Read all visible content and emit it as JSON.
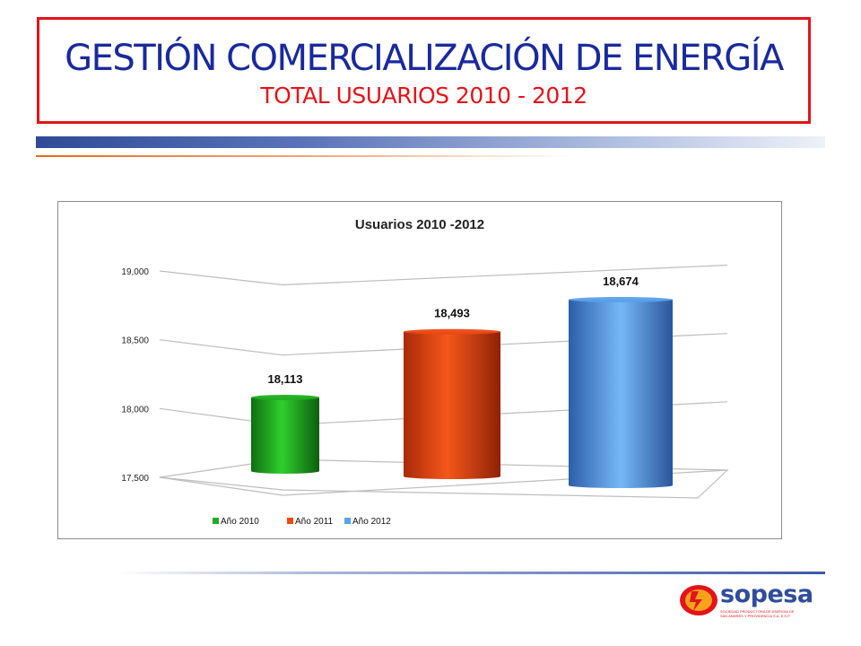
{
  "header": {
    "title": "GESTIÓN COMERCIALIZACIÓN DE ENERGÍA",
    "subtitle": "TOTAL USUARIOS 2010 - 2012"
  },
  "chart_data": {
    "type": "bar",
    "title": "Usuarios 2010 -2012",
    "xlabel": "",
    "ylabel": "",
    "categories": [
      "Año 2010",
      "Año 2011",
      "Año 2012"
    ],
    "values": [
      18113,
      18493,
      18674
    ],
    "value_labels": [
      "18,113",
      "18,493",
      "18,674"
    ],
    "yticks": [
      17500,
      18000,
      18500,
      19000
    ],
    "ytick_labels": [
      "17,500",
      "18,000",
      "18,500",
      "19,000"
    ],
    "ylim": [
      17500,
      19000
    ],
    "legend": [
      "Año 2010",
      "Año 2011",
      "Año 2012"
    ],
    "legend_position": "bottom",
    "grid": true,
    "colors": [
      "#1fae1f",
      "#ea4a14",
      "#5aa0ea"
    ]
  },
  "logo": {
    "word": "sopesa",
    "line1": "SOCIEDAD PRODUCTORA DE ENERGÍA DE",
    "line2": "SAN ANDRÉS Y PROVIDENCIA S.A. E.S.P."
  }
}
